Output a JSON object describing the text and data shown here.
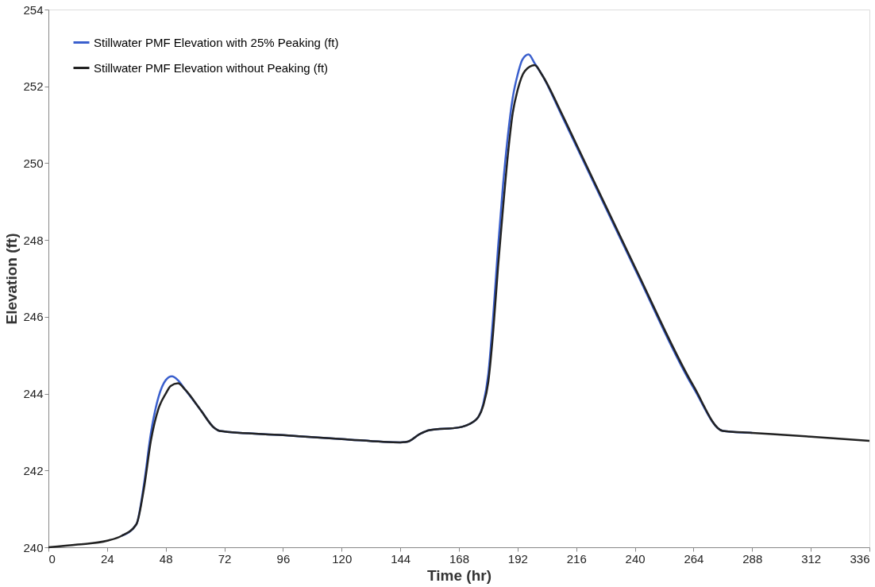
{
  "chart_data": {
    "type": "line",
    "xlabel": "Time (hr)",
    "ylabel": "Elevation (ft)",
    "xlim": [
      0,
      336
    ],
    "xticks": [
      0,
      24,
      48,
      72,
      96,
      120,
      144,
      168,
      192,
      216,
      240,
      264,
      288,
      312,
      336
    ],
    "ylim": [
      240,
      254
    ],
    "yticks": [
      240,
      242,
      244,
      246,
      248,
      250,
      252,
      254
    ],
    "grid": false,
    "legend": "top left",
    "line_style": "solid",
    "marker": "none",
    "series": [
      {
        "name": "Stillwater PMF Elevation with 25% Peaking (ft)",
        "color": "#3a5fcd",
        "x": [
          30,
          36,
          39,
          42,
          45,
          48,
          50.5,
          53,
          56,
          62,
          68,
          70,
          96,
          120,
          144,
          147,
          152,
          156,
          168,
          172,
          176,
          178,
          180,
          182,
          184,
          186,
          188,
          190,
          192,
          194,
          196.5,
          199,
          202,
          210,
          216,
          240,
          264,
          276,
          288
        ],
        "values": [
          240.3,
          240.6,
          241.6,
          243.0,
          243.9,
          244.35,
          244.45,
          244.35,
          244.1,
          243.6,
          243.1,
          243.03,
          242.92,
          242.82,
          242.73,
          242.75,
          242.95,
          243.05,
          243.12,
          243.2,
          243.4,
          243.75,
          244.5,
          246.0,
          247.8,
          249.4,
          250.7,
          251.7,
          252.3,
          252.7,
          252.83,
          252.6,
          252.3,
          251.25,
          250.45,
          247.25,
          244.15,
          243.03,
          242.98
        ]
      },
      {
        "name": "Stillwater PMF Elevation without Peaking (ft)",
        "color": "#222222",
        "x": [
          0,
          12,
          24,
          30,
          36,
          39,
          42,
          45,
          48,
          50,
          53,
          56,
          62,
          68,
          70,
          96,
          120,
          144,
          147,
          152,
          156,
          168,
          172,
          176,
          178,
          180,
          182,
          184,
          186,
          188,
          190,
          192,
          195,
          199,
          202,
          210,
          216,
          240,
          264,
          276,
          288,
          312,
          336
        ],
        "values": [
          240.0,
          240.07,
          240.17,
          240.3,
          240.6,
          241.5,
          242.8,
          243.6,
          244.0,
          244.2,
          244.27,
          244.1,
          243.6,
          243.1,
          243.03,
          242.92,
          242.82,
          242.73,
          242.75,
          242.95,
          243.05,
          243.12,
          243.2,
          243.4,
          243.7,
          244.3,
          245.6,
          247.3,
          248.8,
          250.2,
          251.3,
          251.9,
          252.4,
          252.55,
          252.3,
          251.3,
          250.5,
          247.3,
          244.2,
          243.03,
          242.98,
          242.88,
          242.77
        ]
      }
    ]
  }
}
